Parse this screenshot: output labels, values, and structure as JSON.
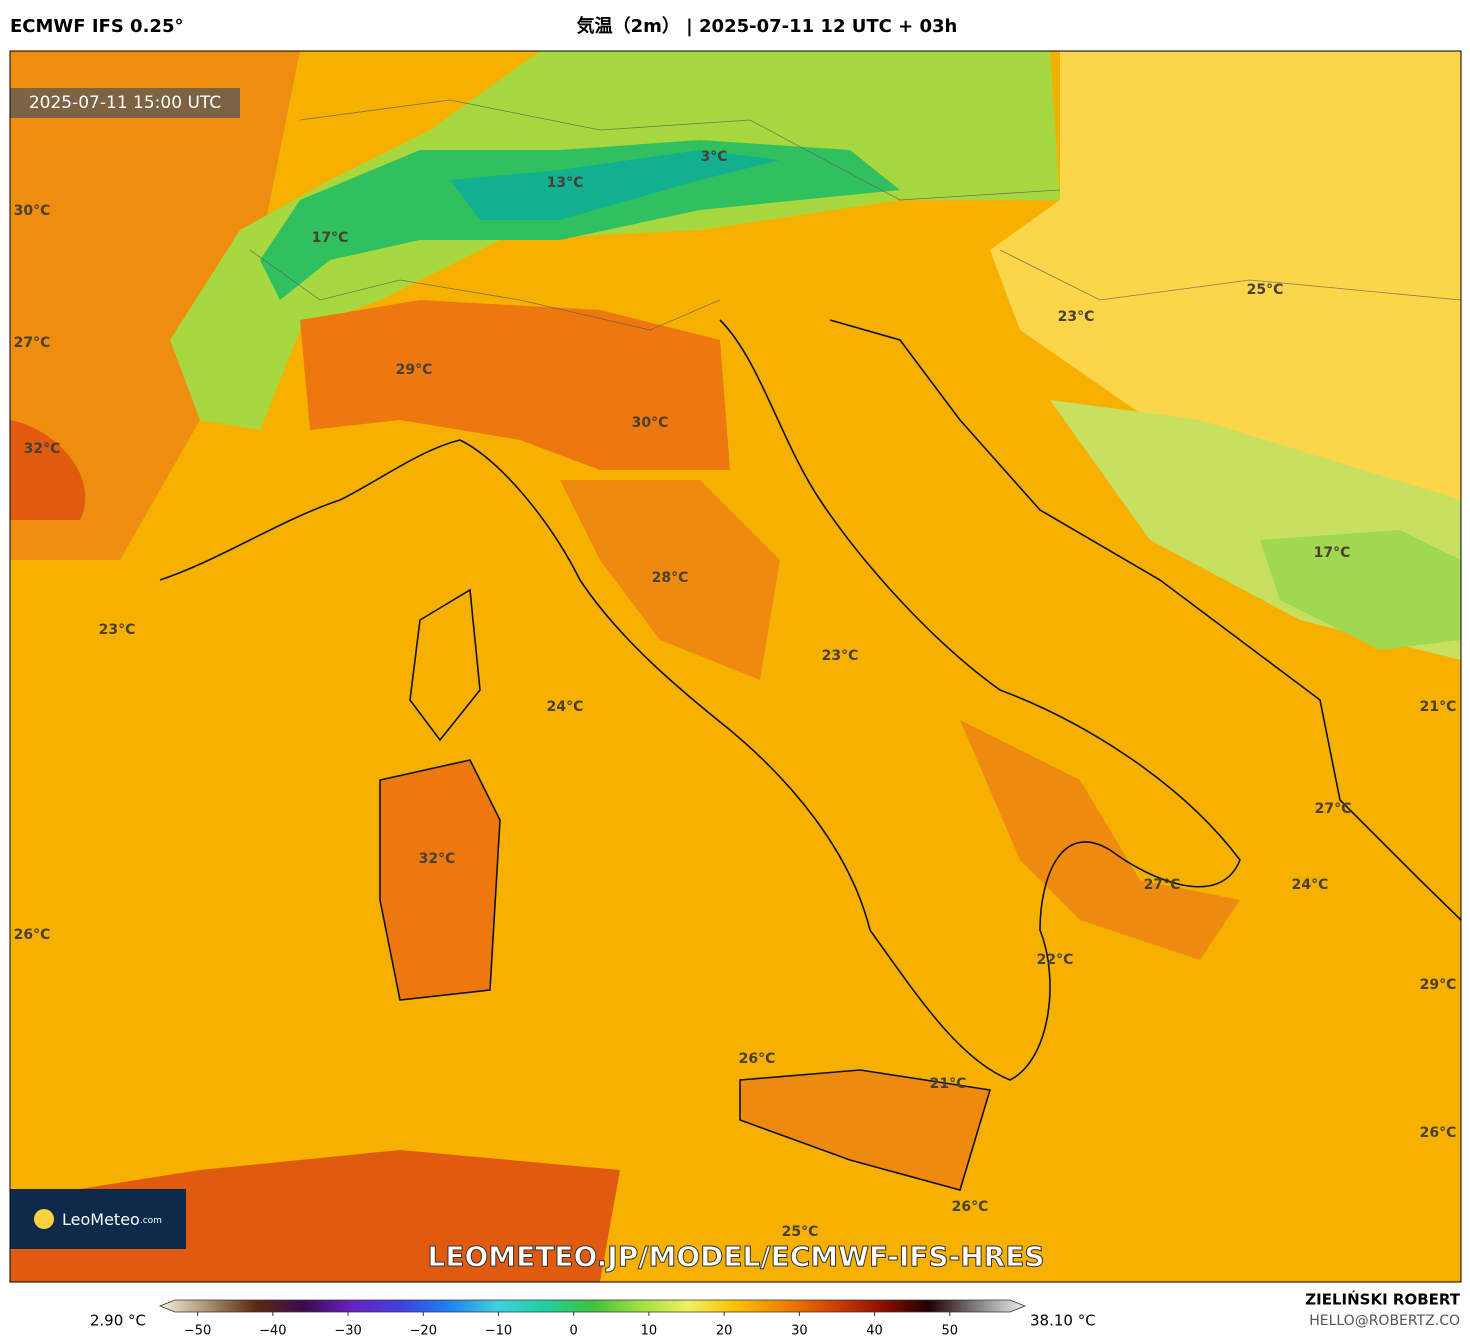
{
  "header": {
    "model": "ECMWF IFS 0.25°",
    "title": "気温（2m） | 2025-07-11 12 UTC + 03h"
  },
  "map": {
    "valid_time": "2025-07-11 15:00 UTC",
    "labels": [
      "3°C",
      "13°C",
      "17°C",
      "30°C",
      "27°C",
      "29°C",
      "30°C",
      "32°C",
      "23°C",
      "25°C",
      "17°C",
      "23°C",
      "28°C",
      "23°C",
      "24°C",
      "21°C",
      "27°C",
      "32°C",
      "27°C",
      "24°C",
      "26°C",
      "22°C",
      "29°C",
      "26°C",
      "21°C",
      "26°C",
      "26°C",
      "25°C"
    ],
    "watermark": "LEOMETEO.JP/MODEL/ECMWF-IFS-HRES",
    "logo": {
      "name": "LeoMeteo",
      "suffix": ".com"
    }
  },
  "colorbar": {
    "min_label": "2.90 °C",
    "max_label": "38.10 °C",
    "xlim": [
      -55,
      60
    ],
    "ticks": [
      {
        "value": -50,
        "label": "−50"
      },
      {
        "value": -40,
        "label": "−40"
      },
      {
        "value": -30,
        "label": "−30"
      },
      {
        "value": -20,
        "label": "−20"
      },
      {
        "value": -10,
        "label": "−10"
      },
      0,
      10,
      20,
      30,
      40,
      50
    ],
    "colors": [
      "#f4f0e0",
      "#a89070",
      "#5a2a10",
      "#3a0a50",
      "#6a20c0",
      "#4040e0",
      "#2080f0",
      "#40d0e0",
      "#20d0a0",
      "#40c040",
      "#a0e040",
      "#f0f060",
      "#f8c000",
      "#f08000",
      "#d04000",
      "#901000",
      "#200000",
      "#808080",
      "#f0f0f0"
    ]
  },
  "footer": {
    "author": "ZIELIŃSKI ROBERT",
    "contact": "HELLO@ROBERTZ.CO"
  }
}
